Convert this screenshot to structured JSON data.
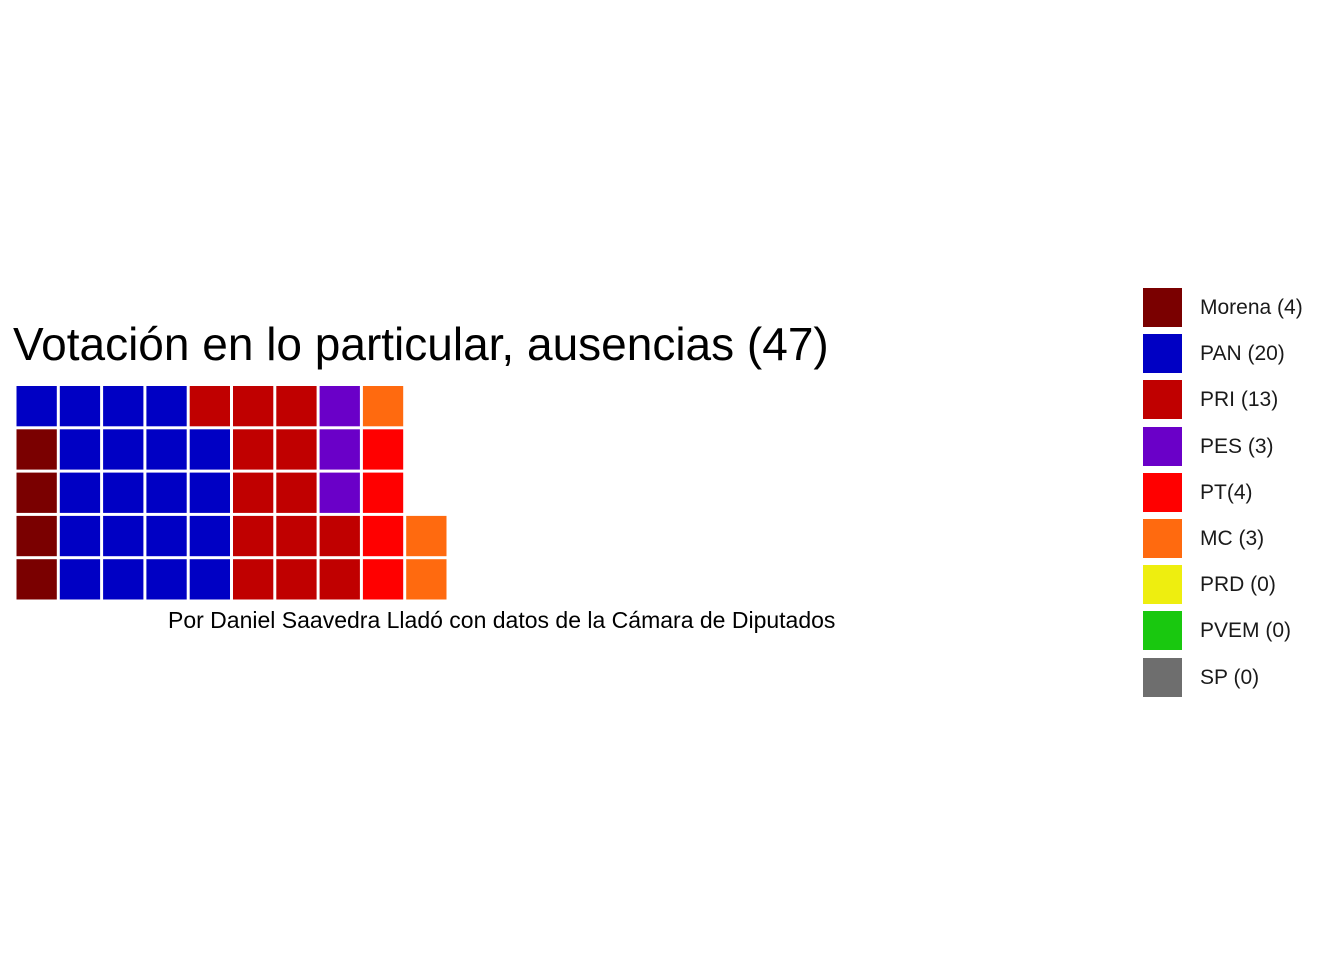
{
  "chart_data": {
    "type": "waffle",
    "title": "Votación en lo particular, ausencias (47)",
    "caption": "Por Daniel Saavedra Lladó con datos de la Cámara de Diputados",
    "rows": 5,
    "fill_order": "column-major, bottom-to-top",
    "legend_position": "right",
    "grid": false,
    "series": [
      {
        "name": "Morena",
        "label": "Morena (4)",
        "value": 4,
        "color": "#7a0000"
      },
      {
        "name": "PAN",
        "label": "PAN (20)",
        "value": 20,
        "color": "#0000c4"
      },
      {
        "name": "PRI",
        "label": "PRI (13)",
        "value": 13,
        "color": "#c00000"
      },
      {
        "name": "PES",
        "label": "PES (3)",
        "value": 3,
        "color": "#6a00c8"
      },
      {
        "name": "PT",
        "label": "PT(4)",
        "value": 4,
        "color": "#ff0000"
      },
      {
        "name": "MC",
        "label": "MC (3)",
        "value": 3,
        "color": "#ff6a0f"
      },
      {
        "name": "PRD",
        "label": "PRD (0)",
        "value": 0,
        "color": "#eeee0f"
      },
      {
        "name": "PVEM",
        "label": "PVEM (0)",
        "value": 0,
        "color": "#19c80f"
      },
      {
        "name": "SP",
        "label": "SP (0)",
        "value": 0,
        "color": "#6e6e6e"
      }
    ]
  }
}
